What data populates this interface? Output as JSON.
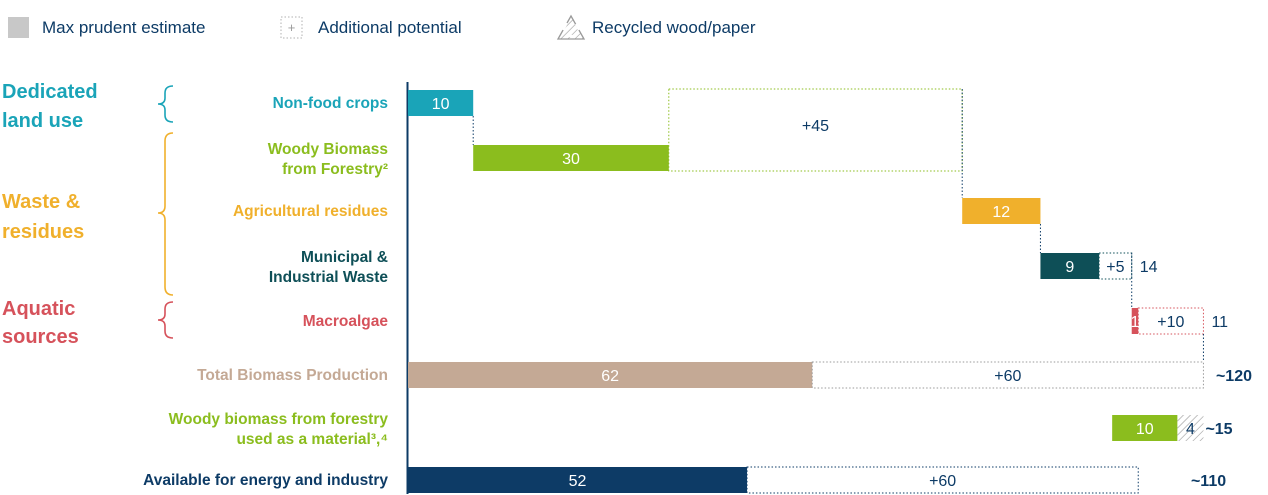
{
  "legend": {
    "max_prudent": "Max prudent estimate",
    "additional": "Additional potential",
    "recycled": "Recycled wood/paper"
  },
  "groups": [
    {
      "label_lines": [
        "Dedicated",
        "land use"
      ],
      "color": "#1aa4b8"
    },
    {
      "label_lines": [
        "Waste &",
        "residues"
      ],
      "color": "#f0b02c"
    },
    {
      "label_lines": [
        "Aquatic",
        "sources"
      ],
      "color": "#d6525b"
    }
  ],
  "colors": {
    "navy": "#0d3b66",
    "teal": "#1aa4b8",
    "green": "#8bbd1e",
    "orange": "#f0b02c",
    "dark_teal": "#0e4f57",
    "red": "#d6525b",
    "tan": "#c4a995",
    "grey": "#c8c8c8"
  },
  "chart_data": {
    "type": "bar",
    "subtype": "waterfall",
    "unit_note": "",
    "categories": [
      {
        "label_lines": [
          "Non-food crops"
        ],
        "color": "#1aa4b8",
        "base": 0,
        "value": 10,
        "additional": null,
        "label_color": "#1aa4b8"
      },
      {
        "label_lines": [
          "Woody Biomass",
          "from Forestry²"
        ],
        "color": "#8bbd1e",
        "base": 10,
        "value": 30,
        "additional": 45,
        "label_color": "#8bbd1e"
      },
      {
        "label_lines": [
          "Agricultural residues"
        ],
        "color": "#f0b02c",
        "base": 85,
        "value": 12,
        "additional": null,
        "label_color": "#f0b02c"
      },
      {
        "label_lines": [
          "Municipal &",
          "Industrial Waste"
        ],
        "color": "#0e4f57",
        "base": 97,
        "value": 9,
        "additional": 5,
        "end_label": "14",
        "label_color": "#0e4f57"
      },
      {
        "label_lines": [
          "Macroalgae"
        ],
        "color": "#d6525b",
        "base": 111,
        "value": 1,
        "additional": 10,
        "end_label": "11",
        "label_color": "#d6525b"
      },
      {
        "label_lines": [
          "Total Biomass Production"
        ],
        "color": "#c4a995",
        "base": 0,
        "value": 62,
        "additional": 60,
        "end_label": "~120",
        "label_color": "#c4a995"
      },
      {
        "label_lines": [
          "Woody biomass from forestry",
          "used as a material³,⁴"
        ],
        "color": "#8bbd1e",
        "base": 108,
        "value": 10,
        "recycled": 4,
        "end_label": "~15",
        "label_color": "#8bbd1e"
      },
      {
        "label_lines": [
          "Available for energy and industry"
        ],
        "color": "#0d3b66",
        "base": 0,
        "value": 52,
        "additional": 60,
        "end_label": "~110",
        "label_color": "#0d3b66"
      }
    ],
    "xlim": [
      0,
      123
    ],
    "grid": false,
    "legend_position": "top-left"
  }
}
